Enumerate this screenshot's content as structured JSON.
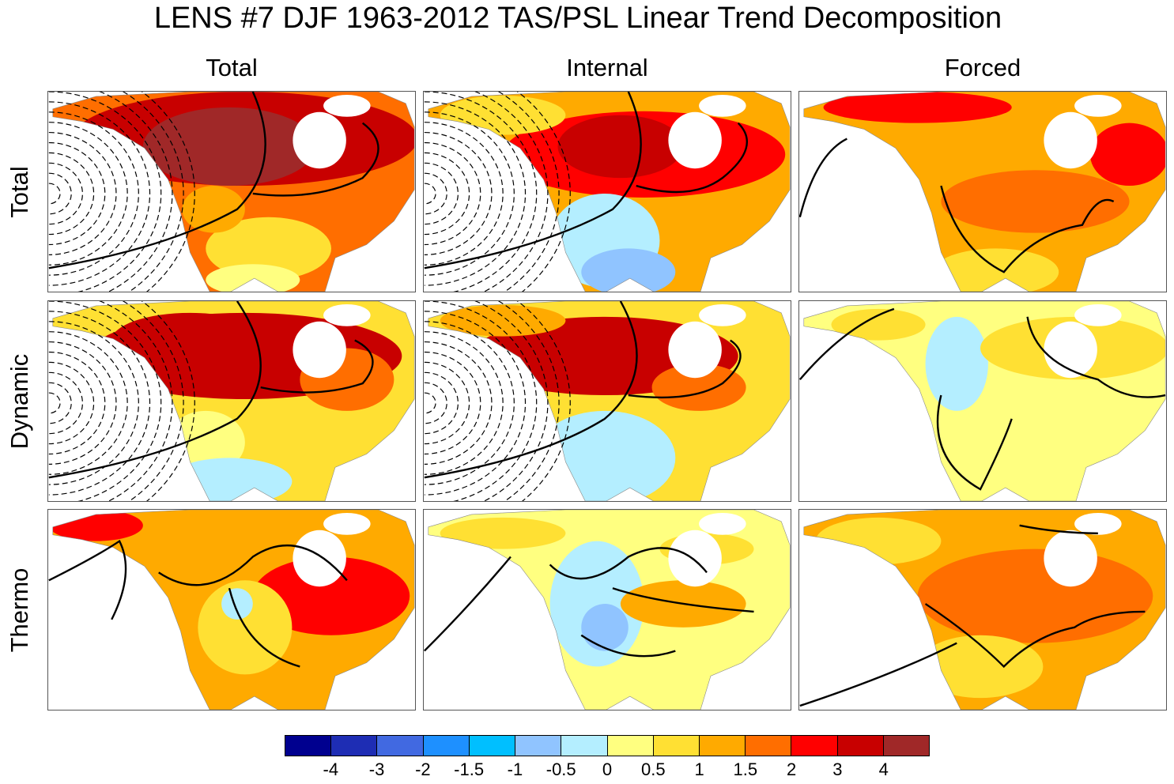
{
  "title": "LENS #7 DJF 1963-2012 TAS/PSL Linear Trend Decomposition",
  "columns": [
    "Total",
    "Internal",
    "Forced"
  ],
  "rows": [
    "Total",
    "Dynamic",
    "Thermo"
  ],
  "colorbar": {
    "colors": [
      "#00008f",
      "#1e2db4",
      "#4169e1",
      "#1e90ff",
      "#00bfff",
      "#90c4ff",
      "#b4eeff",
      "#ffff80",
      "#ffe033",
      "#ffaa00",
      "#ff6e00",
      "#ff0000",
      "#c80000",
      "#a02828"
    ],
    "tick_labels": [
      "-4",
      "-3",
      "-2",
      "-1.5",
      "-1",
      "-0.5",
      "0",
      "0.5",
      "1",
      "1.5",
      "2",
      "3",
      "4"
    ]
  },
  "panels": [
    {
      "row": "Total",
      "column": "Total",
      "psl_dashed_low": true
    },
    {
      "row": "Total",
      "column": "Internal",
      "psl_dashed_low": true
    },
    {
      "row": "Total",
      "column": "Forced",
      "psl_dashed_low": false
    },
    {
      "row": "Dynamic",
      "column": "Total",
      "psl_dashed_low": true
    },
    {
      "row": "Dynamic",
      "column": "Internal",
      "psl_dashed_low": true
    },
    {
      "row": "Dynamic",
      "column": "Forced",
      "psl_dashed_low": false
    },
    {
      "row": "Thermo",
      "column": "Total",
      "psl_dashed_low": false
    },
    {
      "row": "Thermo",
      "column": "Internal",
      "psl_dashed_low": false
    },
    {
      "row": "Thermo",
      "column": "Forced",
      "psl_dashed_low": false
    }
  ]
}
